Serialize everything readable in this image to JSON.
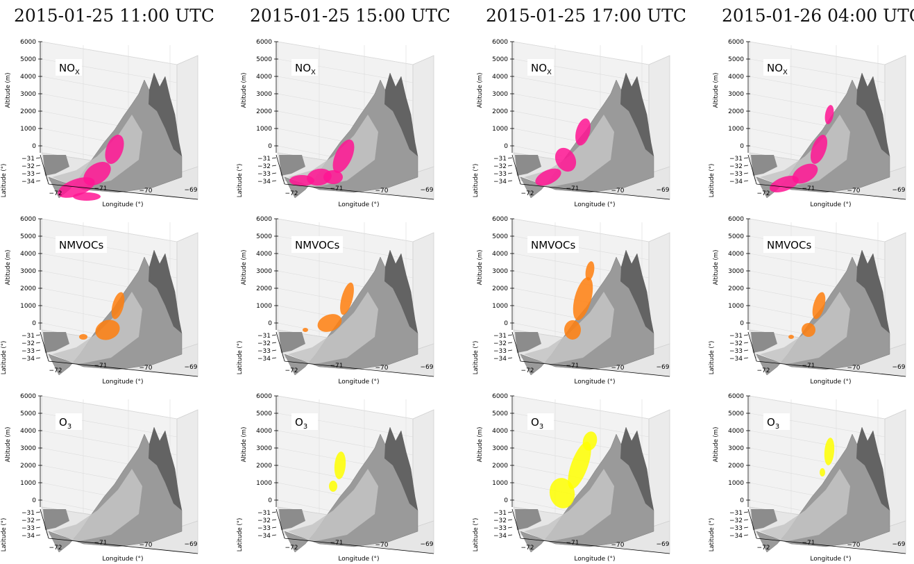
{
  "chart_data": {
    "type": "3d-surface-plume-grid",
    "columns": [
      {
        "time": "2015-01-25 11:00 UTC"
      },
      {
        "time": "2015-01-25 15:00 UTC"
      },
      {
        "time": "2015-01-25 17:00 UTC"
      },
      {
        "time": "2015-01-26 04:00 UTC"
      }
    ],
    "rows": [
      {
        "label": "NO",
        "sub": "X",
        "color": "#ff1493"
      },
      {
        "label": "NMVOCs",
        "sub": "",
        "color": "#ff7f0e"
      },
      {
        "label": "O",
        "sub": "3",
        "color": "#ffff00"
      }
    ],
    "axes": {
      "z": {
        "label": "Altitude (m)",
        "ticks": [
          "0",
          "1000",
          "2000",
          "3000",
          "4000",
          "5000",
          "6000"
        ],
        "lim": [
          0,
          6000
        ]
      },
      "y": {
        "label": "Latitude (°)",
        "ticks": [
          "−31",
          "−32",
          "−33",
          "−34"
        ],
        "lim": [
          -34,
          -31
        ]
      },
      "x": {
        "label": "Longitude (°)",
        "ticks": [
          "−72",
          "−71",
          "−70",
          "−69"
        ],
        "lim": [
          -72,
          -69
        ]
      }
    },
    "surface_color": "#9a9a9a",
    "grid": true
  }
}
